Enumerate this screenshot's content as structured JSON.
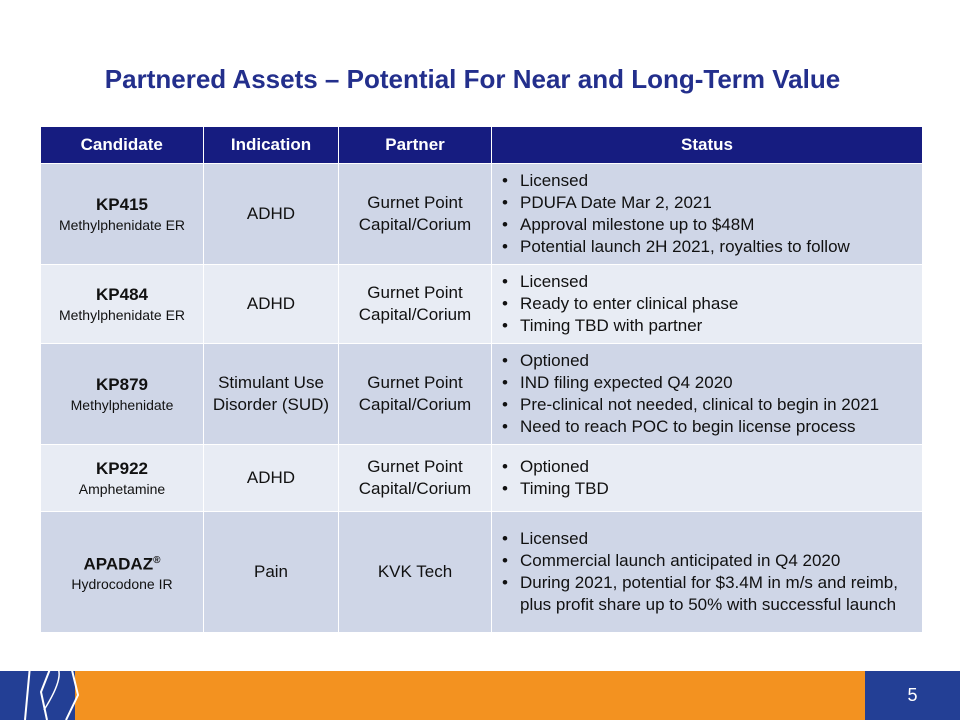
{
  "title": "Partnered Assets – Potential For Near and Long-Term Value",
  "table": {
    "headers": [
      "Candidate",
      "Indication",
      "Partner",
      "Status"
    ],
    "rows": [
      {
        "name": "KP415",
        "sub": "Methylphenidate  ER",
        "indication": "ADHD",
        "partner": "Gurnet Point Capital/Corium",
        "status": [
          "Licensed",
          "PDUFA Date Mar 2, 2021",
          "Approval milestone up to $48M",
          "Potential launch 2H 2021, royalties to follow"
        ]
      },
      {
        "name": "KP484",
        "sub": "Methylphenidate  ER",
        "indication": "ADHD",
        "partner": "Gurnet Point Capital/Corium",
        "status": [
          "Licensed",
          "Ready to enter clinical phase",
          "Timing TBD with partner"
        ]
      },
      {
        "name": "KP879",
        "sub": "Methylphenidate",
        "indication": "Stimulant Use Disorder (SUD)",
        "partner": "Gurnet Point Capital/Corium",
        "status": [
          "Optioned",
          "IND filing expected Q4 2020",
          "Pre-clinical not needed, clinical to begin in 2021",
          "Need to reach POC to begin license process"
        ]
      },
      {
        "name": "KP922",
        "sub": "Amphetamine",
        "indication": "ADHD",
        "partner": "Gurnet Point Capital/Corium",
        "status": [
          "Optioned",
          "Timing TBD"
        ]
      },
      {
        "name": "APADAZ",
        "sup": "®",
        "sub": "Hydrocodone IR",
        "indication": "Pain",
        "partner": "KVK Tech",
        "status": [
          "Licensed",
          "Commercial launch anticipated in Q4 2020",
          "During 2021, potential for $3.4M in m/s and reimb, plus profit share up to 50% with successful launch"
        ]
      }
    ]
  },
  "footer": {
    "page": "5"
  }
}
